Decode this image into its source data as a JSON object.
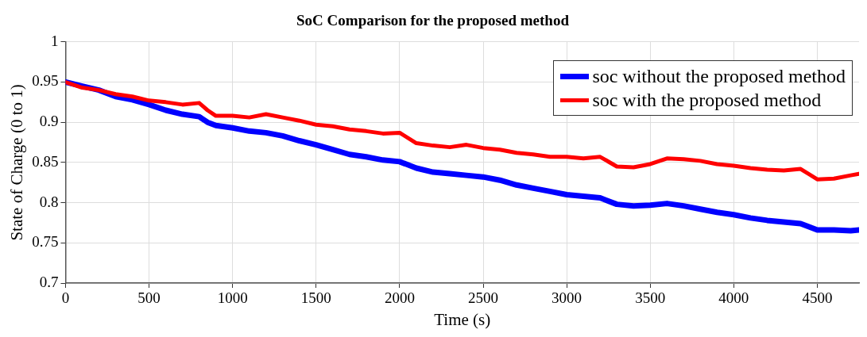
{
  "chart_data": {
    "type": "line",
    "title": "SoC Comparison for the proposed method",
    "xlabel": "Time (s)",
    "ylabel": "State of Charge (0 to 1)",
    "x": [
      0,
      100,
      200,
      300,
      400,
      500,
      600,
      700,
      800,
      850,
      900,
      1000,
      1100,
      1200,
      1300,
      1400,
      1500,
      1600,
      1700,
      1800,
      1900,
      2000,
      2100,
      2200,
      2300,
      2400,
      2500,
      2600,
      2700,
      2800,
      2900,
      3000,
      3100,
      3200,
      3300,
      3400,
      3500,
      3600,
      3700,
      3800,
      3900,
      4000,
      4100,
      4200,
      4300,
      4400,
      4500,
      4600,
      4700,
      4750
    ],
    "series": [
      {
        "name": "soc without the proposed method",
        "color": "#0000ff",
        "values": [
          0.95,
          0.945,
          0.94,
          0.932,
          0.928,
          0.922,
          0.915,
          0.91,
          0.907,
          0.9,
          0.896,
          0.893,
          0.889,
          0.887,
          0.883,
          0.877,
          0.872,
          0.866,
          0.86,
          0.857,
          0.853,
          0.851,
          0.843,
          0.838,
          0.836,
          0.834,
          0.832,
          0.828,
          0.822,
          0.818,
          0.814,
          0.81,
          0.808,
          0.806,
          0.798,
          0.796,
          0.797,
          0.799,
          0.796,
          0.792,
          0.788,
          0.785,
          0.781,
          0.778,
          0.776,
          0.774,
          0.766,
          0.766,
          0.765,
          0.766
        ]
      },
      {
        "name": "soc with the proposed method",
        "color": "#ff0000",
        "values": [
          0.95,
          0.943,
          0.94,
          0.935,
          0.932,
          0.927,
          0.925,
          0.922,
          0.924,
          0.915,
          0.908,
          0.908,
          0.906,
          0.91,
          0.906,
          0.902,
          0.897,
          0.895,
          0.891,
          0.889,
          0.886,
          0.887,
          0.874,
          0.871,
          0.869,
          0.872,
          0.868,
          0.866,
          0.862,
          0.86,
          0.857,
          0.857,
          0.855,
          0.857,
          0.845,
          0.844,
          0.848,
          0.855,
          0.854,
          0.852,
          0.848,
          0.846,
          0.843,
          0.841,
          0.84,
          0.842,
          0.829,
          0.83,
          0.834,
          0.836
        ]
      }
    ],
    "xlim": [
      0,
      4750
    ],
    "xticks": [
      0,
      500,
      1000,
      1500,
      2000,
      2500,
      3000,
      3500,
      4000,
      4500
    ],
    "ylim": [
      0.7,
      1
    ],
    "yticks": [
      0.7,
      0.75,
      0.8,
      0.85,
      0.9,
      0.95,
      1
    ],
    "grid": true,
    "legend": "top right",
    "marker": "none",
    "line_style": "solid"
  }
}
